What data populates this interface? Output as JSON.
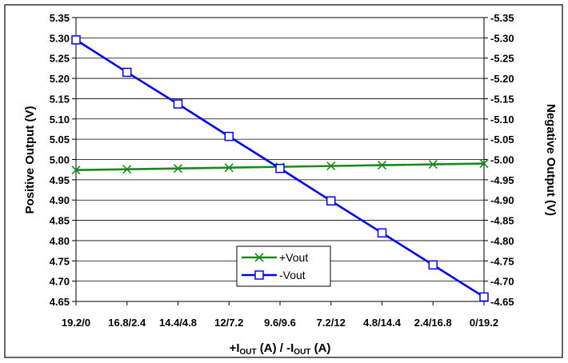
{
  "chart_data": {
    "type": "line",
    "title": "",
    "categories": [
      "19.2/0",
      "16.8/2.4",
      "14.4/4.8",
      "12/7.2",
      "9.6/9.6",
      "7.2/12",
      "4.8/14.4",
      "2.4/16.8",
      "0/19.2"
    ],
    "xlabel": {
      "main": "+I",
      "sub1": "OUT",
      "mid": " (A) / -I",
      "sub2": "OUT",
      "end": " (A)"
    },
    "ylabel_left": "Positive Output (V)",
    "ylabel_right": "Negative Output (V)",
    "ylim_left": [
      4.65,
      5.35
    ],
    "ylim_right": [
      -4.65,
      -5.35
    ],
    "y_ticks_left": [
      "5.35",
      "5.30",
      "5.25",
      "5.20",
      "5.15",
      "5.10",
      "5.05",
      "5.00",
      "4.95",
      "4.90",
      "4.85",
      "4.80",
      "4.75",
      "4.70",
      "4.65"
    ],
    "y_ticks_right": [
      "-5.35",
      "-5.30",
      "-5.25",
      "-5.20",
      "-5.15",
      "-5.10",
      "-5.05",
      "-5.00",
      "-4.95",
      "-4.90",
      "-4.85",
      "-4.80",
      "-4.75",
      "-4.70",
      "-4.65"
    ],
    "grid": true,
    "legend_position": "bottom-center",
    "series": [
      {
        "name": "+Vout",
        "axis": "left",
        "color": "#1a8a1a",
        "marker": "x",
        "values": [
          4.974,
          4.976,
          4.978,
          4.98,
          4.982,
          4.984,
          4.986,
          4.988,
          4.99
        ]
      },
      {
        "name": "-Vout",
        "axis": "right",
        "color": "#0000ee",
        "marker": "square",
        "values": [
          -5.295,
          -5.215,
          -5.137,
          -5.057,
          -4.978,
          -4.898,
          -4.819,
          -4.74,
          -4.661
        ]
      }
    ]
  }
}
